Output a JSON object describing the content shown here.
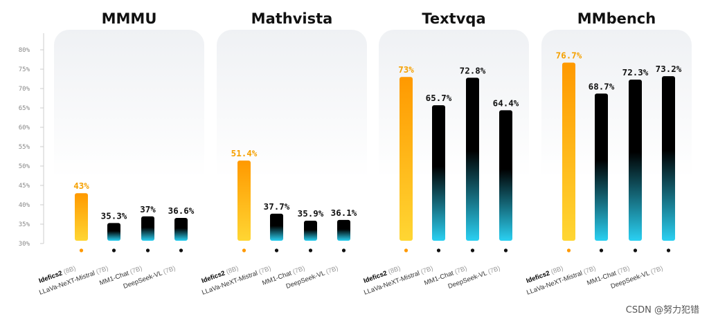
{
  "chart_data": {
    "type": "bar",
    "ylim": [
      30,
      80
    ],
    "yticks": [
      "30%",
      "35%",
      "40%",
      "45%",
      "50%",
      "55%",
      "60%",
      "65%",
      "70%",
      "75%",
      "80%"
    ],
    "categories": [
      {
        "name": "Idefics2",
        "size": "(8B)"
      },
      {
        "name": "LLaVa-NeXT-Mistral",
        "size": "(7B)"
      },
      {
        "name": "MM1-Chat",
        "size": "(7B)"
      },
      {
        "name": "DeepSeek-VL",
        "size": "(7B)"
      }
    ],
    "panels": [
      {
        "title": "MMMU",
        "values": [
          43,
          35.3,
          37,
          36.6
        ],
        "labels": [
          "43%",
          "35.3%",
          "37%",
          "36.6%"
        ]
      },
      {
        "title": "Mathvista",
        "values": [
          51.4,
          37.7,
          35.9,
          36.1
        ],
        "labels": [
          "51.4%",
          "37.7%",
          "35.9%",
          "36.1%"
        ]
      },
      {
        "title": "Textvqa",
        "values": [
          73,
          65.7,
          72.8,
          64.4
        ],
        "labels": [
          "73%",
          "65.7%",
          "72.8%",
          "64.4%"
        ]
      },
      {
        "title": "MMbench",
        "values": [
          76.7,
          68.7,
          72.3,
          73.2
        ],
        "labels": [
          "76.7%",
          "68.7%",
          "72.3%",
          "73.2%"
        ]
      }
    ],
    "colors": {
      "highlight_top": "#ff9900",
      "highlight_bottom": "#ffd633",
      "highlight_text": "#f5a000",
      "other_top": "#000000",
      "other_bottom": "#2ad0f2",
      "other_text": "#111111"
    }
  },
  "watermark": "CSDN @努力犯错"
}
